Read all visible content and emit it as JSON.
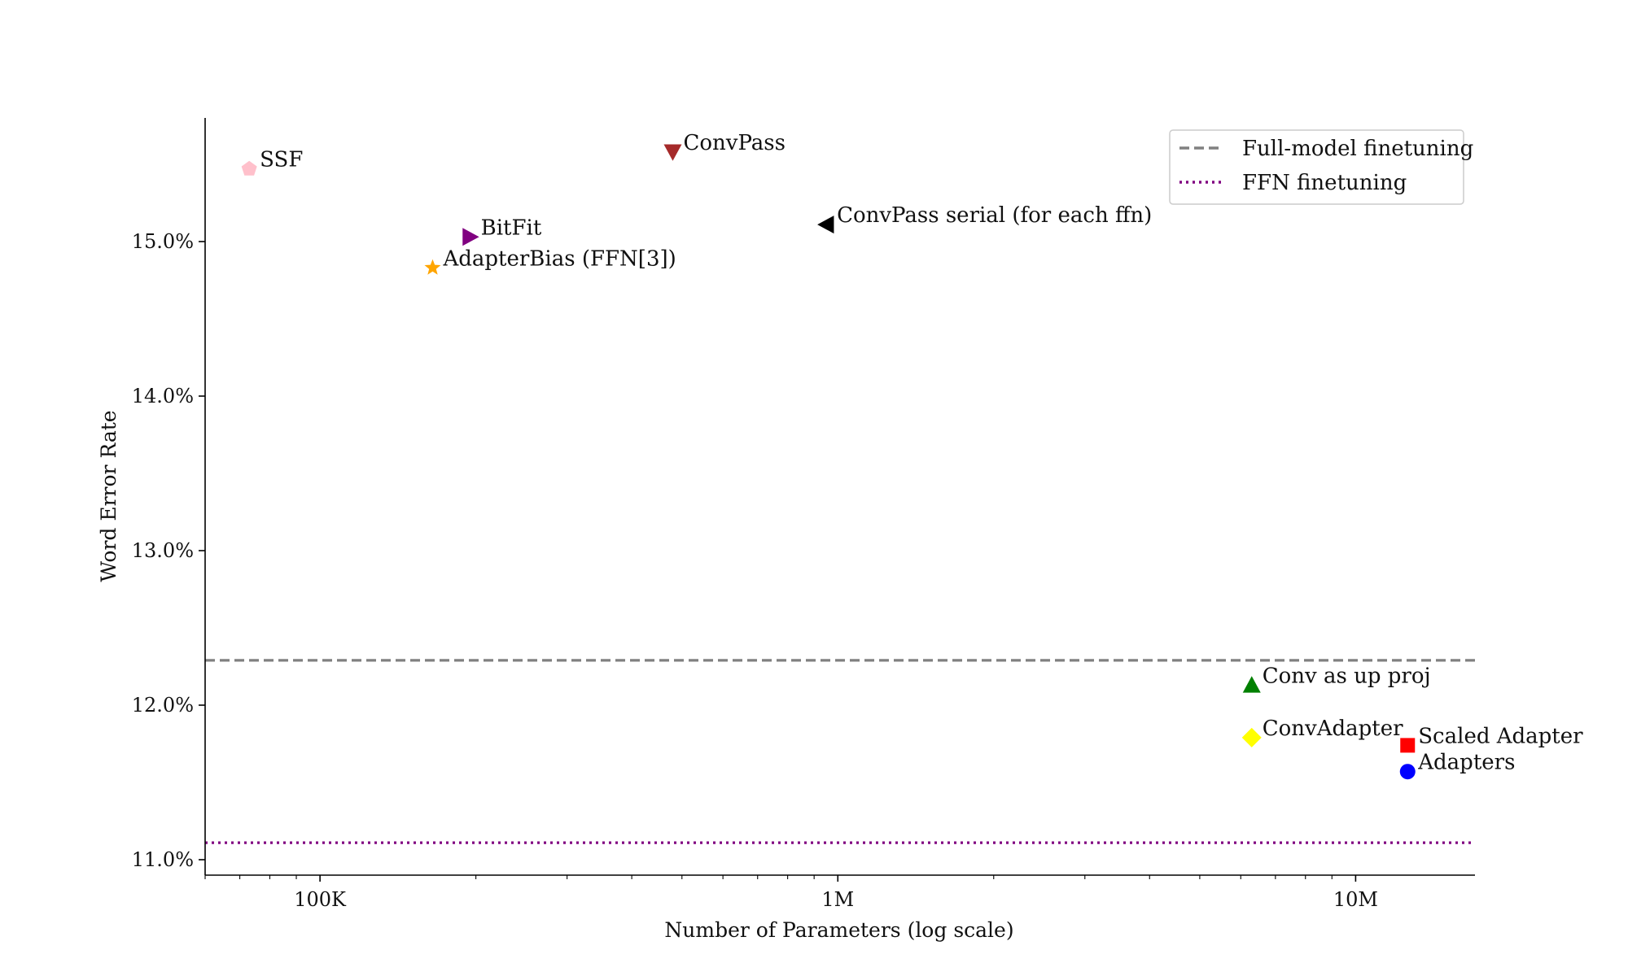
{
  "chart_data": {
    "type": "scatter",
    "title": "",
    "xlabel": "Number of Parameters (log scale)",
    "ylabel": "Word Error Rate",
    "x_scale": "log",
    "xlim": [
      60000,
      17000000
    ],
    "ylim": [
      10.9,
      15.8
    ],
    "x_ticks": [
      {
        "value": 100000,
        "label": "100K"
      },
      {
        "value": 1000000,
        "label": "1M"
      },
      {
        "value": 10000000,
        "label": "10M"
      }
    ],
    "y_ticks": [
      {
        "value": 11.0,
        "label": "11.0%"
      },
      {
        "value": 12.0,
        "label": "12.0%"
      },
      {
        "value": 13.0,
        "label": "13.0%"
      },
      {
        "value": 14.0,
        "label": "14.0%"
      },
      {
        "value": 15.0,
        "label": "15.0%"
      }
    ],
    "grid": false,
    "legend_position": "top-right",
    "reference_lines": [
      {
        "name": "Full-model finetuning",
        "y": 12.29,
        "style": "dashed",
        "color": "#808080"
      },
      {
        "name": "FFN finetuning",
        "y": 11.11,
        "style": "dotted",
        "color": "#800080"
      }
    ],
    "points": [
      {
        "label": "SSF",
        "x": 73000,
        "y": 15.47,
        "marker": "pentagon",
        "color": "#ffc0cb"
      },
      {
        "label": "ConvPass",
        "x": 480000,
        "y": 15.58,
        "marker": "triangle-down",
        "color": "#a52a2a"
      },
      {
        "label": "BitFit",
        "x": 195000,
        "y": 15.03,
        "marker": "triangle-right",
        "color": "#800080"
      },
      {
        "label": "ConvPass serial (for each ffn)",
        "x": 950000,
        "y": 15.11,
        "marker": "triangle-left",
        "color": "#000000"
      },
      {
        "label": "AdapterBias (FFN[3])",
        "x": 165000,
        "y": 14.83,
        "marker": "star",
        "color": "#ffa500"
      },
      {
        "label": "Conv as up proj",
        "x": 6300000,
        "y": 12.13,
        "marker": "triangle-up",
        "color": "#008000"
      },
      {
        "label": "ConvAdapter",
        "x": 6300000,
        "y": 11.79,
        "marker": "diamond",
        "color": "#ffff00"
      },
      {
        "label": "Scaled Adapter",
        "x": 12600000,
        "y": 11.74,
        "marker": "square",
        "color": "#ff0000"
      },
      {
        "label": "Adapters",
        "x": 12600000,
        "y": 11.57,
        "marker": "circle",
        "color": "#0000ff"
      }
    ]
  }
}
